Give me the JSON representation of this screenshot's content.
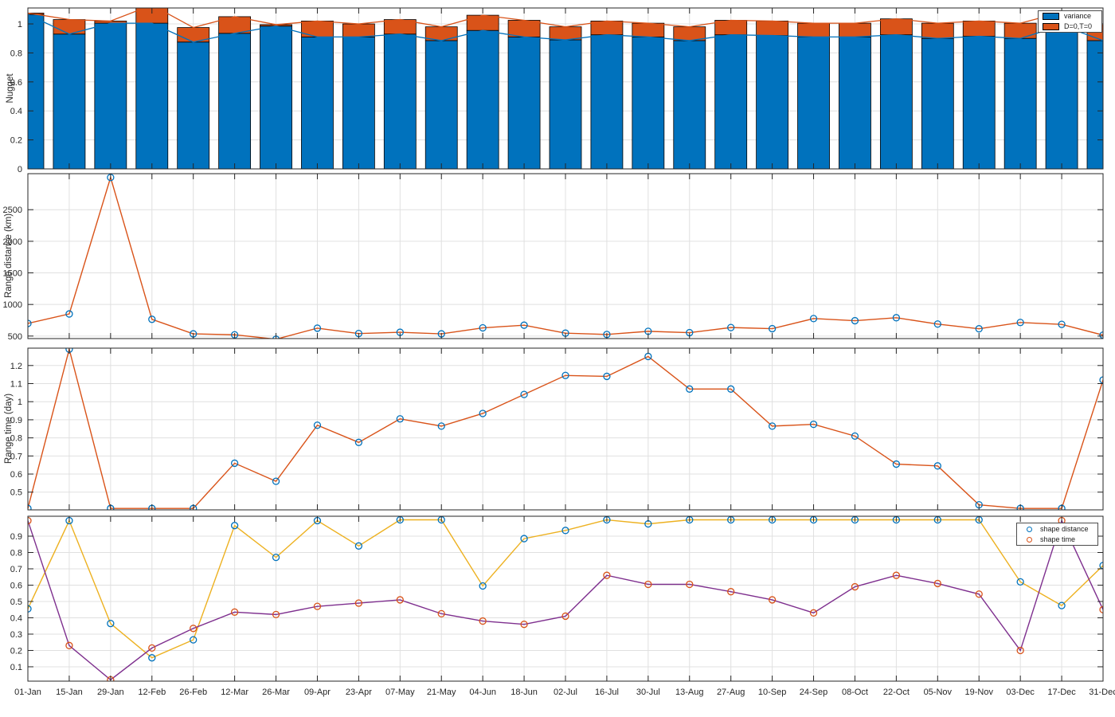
{
  "figure": {
    "background": "#ffffff"
  },
  "colors": {
    "bar_blue": "#0072BD",
    "bar_orange": "#D95319",
    "line_orange": "#D95319",
    "marker_blue": "#0072BD",
    "line_yellow": "#EDB120",
    "line_purple": "#7E2F8E",
    "marker_red": "#D95319",
    "grid": "#e0e0e0",
    "axis": "#262626",
    "bar_edge": "#000000"
  },
  "x_categories": [
    "01-Jan",
    "15-Jan",
    "29-Jan",
    "12-Feb",
    "26-Feb",
    "12-Mar",
    "26-Mar",
    "09-Apr",
    "23-Apr",
    "07-May",
    "21-May",
    "04-Jun",
    "18-Jun",
    "02-Jul",
    "16-Jul",
    "30-Jul",
    "13-Aug",
    "27-Aug",
    "10-Sep",
    "24-Sep",
    "08-Oct",
    "22-Oct",
    "05-Nov",
    "19-Nov",
    "03-Dec",
    "17-Dec",
    "31-Dec"
  ],
  "chart_data": [
    {
      "id": "nugget",
      "type": "bar",
      "stacked": true,
      "title": "",
      "xlabel": "",
      "ylabel": "Nugget",
      "ylim": [
        0,
        1.11
      ],
      "yticks": [
        0,
        0.2,
        0.4,
        0.6,
        0.8,
        1
      ],
      "grid": true,
      "legend_position": "northeast",
      "categories": [
        "01-Jan",
        "15-Jan",
        "29-Jan",
        "12-Feb",
        "26-Feb",
        "12-Mar",
        "26-Mar",
        "09-Apr",
        "23-Apr",
        "07-May",
        "21-May",
        "04-Jun",
        "18-Jun",
        "02-Jul",
        "16-Jul",
        "30-Jul",
        "13-Aug",
        "27-Aug",
        "10-Sep",
        "24-Sep",
        "08-Oct",
        "22-Oct",
        "05-Nov",
        "19-Nov",
        "03-Dec",
        "17-Dec",
        "31-Dec"
      ],
      "series": [
        {
          "name": "variance",
          "color": "#0072BD",
          "values": [
            1.065,
            0.93,
            1.005,
            1.005,
            0.875,
            0.935,
            0.985,
            0.91,
            0.91,
            0.93,
            0.885,
            0.955,
            0.91,
            0.89,
            0.925,
            0.91,
            0.885,
            0.925,
            0.92,
            0.91,
            0.91,
            0.925,
            0.9,
            0.915,
            0.9,
            0.99,
            0.885
          ]
        },
        {
          "name": "D=0,T=0",
          "color": "#D95319",
          "values": [
            0.01,
            0.1,
            0.015,
            0.125,
            0.1,
            0.115,
            0.01,
            0.11,
            0.09,
            0.1,
            0.095,
            0.105,
            0.115,
            0.09,
            0.095,
            0.095,
            0.095,
            0.1,
            0.1,
            0.095,
            0.095,
            0.11,
            0.105,
            0.105,
            0.105,
            0.09,
            0.105
          ]
        }
      ],
      "overlay_lines": [
        {
          "name": "variance-top-line",
          "color": "#0072BD",
          "follows": "series 0 cumulative"
        },
        {
          "name": "stack-total-line",
          "color": "#D95319",
          "follows": "stack total"
        }
      ]
    },
    {
      "id": "range-distance",
      "type": "line",
      "title": "",
      "xlabel": "",
      "ylabel": "Range distance (km)",
      "ylim": [
        460,
        3070
      ],
      "yticks": [
        500,
        1000,
        1500,
        2000,
        2500
      ],
      "grid": true,
      "categories": [
        "01-Jan",
        "15-Jan",
        "29-Jan",
        "12-Feb",
        "26-Feb",
        "12-Mar",
        "26-Mar",
        "09-Apr",
        "23-Apr",
        "07-May",
        "21-May",
        "04-Jun",
        "18-Jun",
        "02-Jul",
        "16-Jul",
        "30-Jul",
        "13-Aug",
        "27-Aug",
        "10-Sep",
        "24-Sep",
        "08-Oct",
        "22-Oct",
        "05-Nov",
        "19-Nov",
        "03-Dec",
        "17-Dec",
        "31-Dec"
      ],
      "series": [
        {
          "name": "range distance",
          "line_color": "#D95319",
          "marker": "o",
          "marker_color": "#0072BD",
          "values": [
            700,
            850,
            3010,
            765,
            535,
            520,
            450,
            625,
            540,
            560,
            535,
            630,
            672,
            546,
            525,
            575,
            554,
            635,
            617,
            777,
            743,
            790,
            690,
            615,
            715,
            685,
            515
          ]
        }
      ]
    },
    {
      "id": "range-time",
      "type": "line",
      "title": "",
      "xlabel": "",
      "ylabel": "Range time (day)",
      "ylim": [
        0.402,
        1.296
      ],
      "yticks": [
        0.5,
        0.6,
        0.7,
        0.8,
        0.9,
        1,
        1.1,
        1.2
      ],
      "grid": true,
      "categories": [
        "01-Jan",
        "15-Jan",
        "29-Jan",
        "12-Feb",
        "26-Feb",
        "12-Mar",
        "26-Mar",
        "09-Apr",
        "23-Apr",
        "07-May",
        "21-May",
        "04-Jun",
        "18-Jun",
        "02-Jul",
        "16-Jul",
        "30-Jul",
        "13-Aug",
        "27-Aug",
        "10-Sep",
        "24-Sep",
        "08-Oct",
        "22-Oct",
        "05-Nov",
        "19-Nov",
        "03-Dec",
        "17-Dec",
        "31-Dec"
      ],
      "series": [
        {
          "name": "range time",
          "line_color": "#D95319",
          "marker": "o",
          "marker_color": "#0072BD",
          "values": [
            0.41,
            1.29,
            0.41,
            0.41,
            0.41,
            0.66,
            0.56,
            0.87,
            0.775,
            0.905,
            0.865,
            0.935,
            1.04,
            1.145,
            1.14,
            1.25,
            1.07,
            1.07,
            0.865,
            0.875,
            0.81,
            0.655,
            0.645,
            0.43,
            0.41,
            0.41,
            1.12
          ]
        }
      ]
    },
    {
      "id": "shape",
      "type": "line",
      "title": "",
      "xlabel": "",
      "ylabel": "",
      "ylim": [
        0.012,
        1.022
      ],
      "yticks": [
        0.1,
        0.2,
        0.3,
        0.4,
        0.5,
        0.6,
        0.7,
        0.8,
        0.9
      ],
      "grid": true,
      "legend_position": "northeast",
      "categories": [
        "01-Jan",
        "15-Jan",
        "29-Jan",
        "12-Feb",
        "26-Feb",
        "12-Mar",
        "26-Mar",
        "09-Apr",
        "23-Apr",
        "07-May",
        "21-May",
        "04-Jun",
        "18-Jun",
        "02-Jul",
        "16-Jul",
        "30-Jul",
        "13-Aug",
        "27-Aug",
        "10-Sep",
        "24-Sep",
        "08-Oct",
        "22-Oct",
        "05-Nov",
        "19-Nov",
        "03-Dec",
        "17-Dec",
        "31-Dec"
      ],
      "series": [
        {
          "name": "shape distance",
          "line_color": "#EDB120",
          "marker": "o",
          "marker_color": "#0072BD",
          "values": [
            0.455,
            0.995,
            0.365,
            0.155,
            0.265,
            0.965,
            0.77,
            0.995,
            0.84,
            1.0,
            1.0,
            0.595,
            0.885,
            0.935,
            1.0,
            0.975,
            1.0,
            1.0,
            1.0,
            1.0,
            1.0,
            1.0,
            1.0,
            1.0,
            0.62,
            0.475,
            0.72
          ]
        },
        {
          "name": "shape time",
          "line_color": "#7E2F8E",
          "marker": "o",
          "marker_color": "#D95319",
          "values": [
            0.995,
            0.23,
            0.02,
            0.215,
            0.335,
            0.435,
            0.42,
            0.47,
            0.49,
            0.51,
            0.425,
            0.38,
            0.36,
            0.41,
            0.66,
            0.605,
            0.605,
            0.56,
            0.51,
            0.43,
            0.59,
            0.66,
            0.61,
            0.545,
            0.2,
            0.995,
            0.45
          ]
        }
      ]
    }
  ]
}
